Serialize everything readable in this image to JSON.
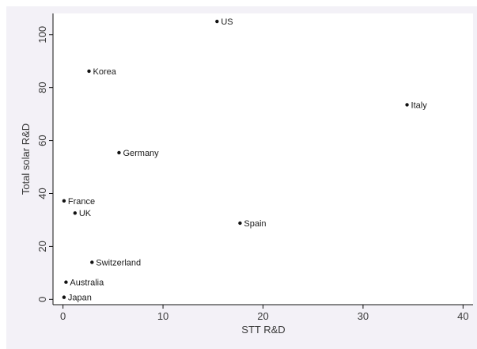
{
  "chart_data": {
    "type": "scatter",
    "title": "",
    "xlabel": "STT R&D",
    "ylabel": "Total solar R&D",
    "xlim": [
      -1,
      41
    ],
    "ylim": [
      -2,
      108
    ],
    "xticks": [
      0,
      10,
      20,
      30,
      40
    ],
    "yticks": [
      0,
      20,
      40,
      60,
      80,
      100
    ],
    "grid": false,
    "legend": "none",
    "points": [
      {
        "label": "US",
        "x": 15.4,
        "y": 105
      },
      {
        "label": "Korea",
        "x": 2.6,
        "y": 86.2
      },
      {
        "label": "Italy",
        "x": 34.4,
        "y": 73.5
      },
      {
        "label": "Germany",
        "x": 5.6,
        "y": 55.4
      },
      {
        "label": "France",
        "x": 0.1,
        "y": 37.2
      },
      {
        "label": "UK",
        "x": 1.2,
        "y": 32.6
      },
      {
        "label": "Spain",
        "x": 17.7,
        "y": 28.8
      },
      {
        "label": "Switzerland",
        "x": 2.9,
        "y": 14
      },
      {
        "label": "Australia",
        "x": 0.3,
        "y": 6.5
      },
      {
        "label": "Japan",
        "x": 0.1,
        "y": 0.8
      }
    ],
    "colors": {
      "background": "#ffffff",
      "plot_region": "#f3f1f7",
      "plot_area": "#ffffff",
      "axis": "#111111",
      "marker": "#111111",
      "text": "#3a3a3a"
    }
  }
}
